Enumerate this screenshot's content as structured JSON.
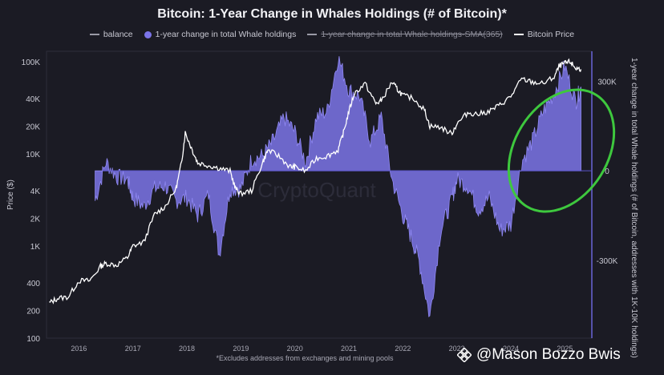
{
  "title": "Bitcoin: 1-Year Change in Whales Holdings (# of Bitcoin)*",
  "legend": [
    {
      "label": "balance",
      "style": "line",
      "color": "#9a9aa6",
      "strike": false
    },
    {
      "label": "1-year change in total Whale holdings",
      "style": "dot",
      "color": "#7b74e8",
      "strike": false
    },
    {
      "label": "1-year change in total Whale holdings-SMA(365)",
      "style": "line",
      "color": "#9a9aa6",
      "strike": true
    },
    {
      "label": "Bitcoin Price",
      "style": "line",
      "color": "#ffffff",
      "strike": false
    }
  ],
  "left_axis_title": "Price ($)",
  "right_axis_title": "1-year change in total Whale holdings (# of Bitcoin, addresses with 1K-10K holdings)",
  "footnote": "*Excludes addresses from exchanges and mining pools",
  "watermark_text": "CryptoQuant",
  "credit": "@Mason Bozzo Bwis",
  "colors": {
    "background": "#1b1b24",
    "area_fill": "#7b74e8",
    "price_line": "#ffffff",
    "highlight_ellipse": "#3ec83e"
  },
  "chart_data": {
    "type": "area",
    "title": "Bitcoin: 1-Year Change in Whales Holdings (# of Bitcoin)*",
    "x_ticks": [
      "2016",
      "2017",
      "2018",
      "2019",
      "2020",
      "2021",
      "2022",
      "2023",
      "2024",
      "2025"
    ],
    "x_range": [
      2015.4,
      2025.5
    ],
    "left_axis": {
      "label": "Price ($)",
      "scale": "log",
      "range": [
        100,
        130000
      ],
      "ticks": [
        "100K",
        "40K",
        "20K",
        "10K",
        "4K",
        "2K",
        "1K",
        "400",
        "200",
        "100"
      ],
      "tick_values": [
        100000,
        40000,
        20000,
        10000,
        4000,
        2000,
        1000,
        400,
        200,
        100
      ]
    },
    "right_axis": {
      "label": "1-year change in total Whale holdings (# of Bitcoin, addresses with 1K-10K holdings)",
      "range": [
        -560000,
        400000
      ],
      "ticks": [
        "300K",
        "0",
        "-300K"
      ],
      "tick_values": [
        300000,
        0,
        -300000
      ]
    },
    "series": [
      {
        "name": "Bitcoin Price",
        "axis": "left",
        "x": [
          2015.45,
          2015.6,
          2015.8,
          2016.0,
          2016.2,
          2016.4,
          2016.5,
          2016.7,
          2016.9,
          2017.0,
          2017.2,
          2017.4,
          2017.6,
          2017.8,
          2017.9,
          2017.97,
          2018.1,
          2018.2,
          2018.4,
          2018.6,
          2018.8,
          2018.9,
          2019.0,
          2019.2,
          2019.4,
          2019.5,
          2019.7,
          2019.9,
          2020.0,
          2020.2,
          2020.4,
          2020.6,
          2020.8,
          2020.9,
          2021.0,
          2021.1,
          2021.3,
          2021.5,
          2021.6,
          2021.8,
          2021.9,
          2022.0,
          2022.2,
          2022.4,
          2022.5,
          2022.7,
          2022.9,
          2023.0,
          2023.2,
          2023.4,
          2023.6,
          2023.8,
          2024.0,
          2024.2,
          2024.4,
          2024.6,
          2024.8,
          2024.9,
          2025.0,
          2025.1,
          2025.2,
          2025.3
        ],
        "y": [
          240,
          270,
          280,
          420,
          420,
          600,
          650,
          620,
          750,
          1000,
          1100,
          2200,
          2700,
          4200,
          8000,
          17000,
          11000,
          8000,
          7500,
          7000,
          6500,
          4200,
          3700,
          4000,
          8000,
          11000,
          9500,
          7300,
          7200,
          6500,
          9000,
          9500,
          11000,
          17000,
          29000,
          45000,
          58000,
          35000,
          38000,
          60000,
          50000,
          43000,
          40000,
          30000,
          20000,
          19500,
          16500,
          21000,
          28000,
          27000,
          29000,
          34000,
          42000,
          65000,
          60000,
          58000,
          68000,
          90000,
          96000,
          100000,
          85000,
          83000
        ]
      },
      {
        "name": "1-year change in total Whale holdings",
        "axis": "right",
        "x": [
          2016.3,
          2016.5,
          2016.7,
          2016.9,
          2017.0,
          2017.2,
          2017.4,
          2017.6,
          2017.8,
          2018.0,
          2018.2,
          2018.4,
          2018.6,
          2018.8,
          2019.0,
          2019.2,
          2019.4,
          2019.6,
          2019.8,
          2020.0,
          2020.2,
          2020.4,
          2020.6,
          2020.8,
          2021.0,
          2021.2,
          2021.4,
          2021.6,
          2021.8,
          2022.0,
          2022.15,
          2022.3,
          2022.5,
          2022.7,
          2022.9,
          2023.0,
          2023.2,
          2023.4,
          2023.6,
          2023.8,
          2024.0,
          2024.2,
          2024.4,
          2024.6,
          2024.8,
          2025.0,
          2025.2,
          2025.3
        ],
        "y": [
          -100000,
          30000,
          -20000,
          -30000,
          -90000,
          -120000,
          -60000,
          -50000,
          -100000,
          -90000,
          -150000,
          -80000,
          -280000,
          -60000,
          -60000,
          40000,
          50000,
          100000,
          180000,
          130000,
          30000,
          180000,
          200000,
          380000,
          270000,
          250000,
          100000,
          180000,
          -30000,
          -150000,
          -220000,
          -300000,
          -490000,
          -200000,
          -100000,
          -30000,
          -50000,
          -130000,
          -90000,
          -200000,
          -180000,
          30000,
          100000,
          200000,
          260000,
          350000,
          230000,
          280000
        ]
      }
    ],
    "annotation": "highlight ellipse around 2024-2025 rise"
  }
}
